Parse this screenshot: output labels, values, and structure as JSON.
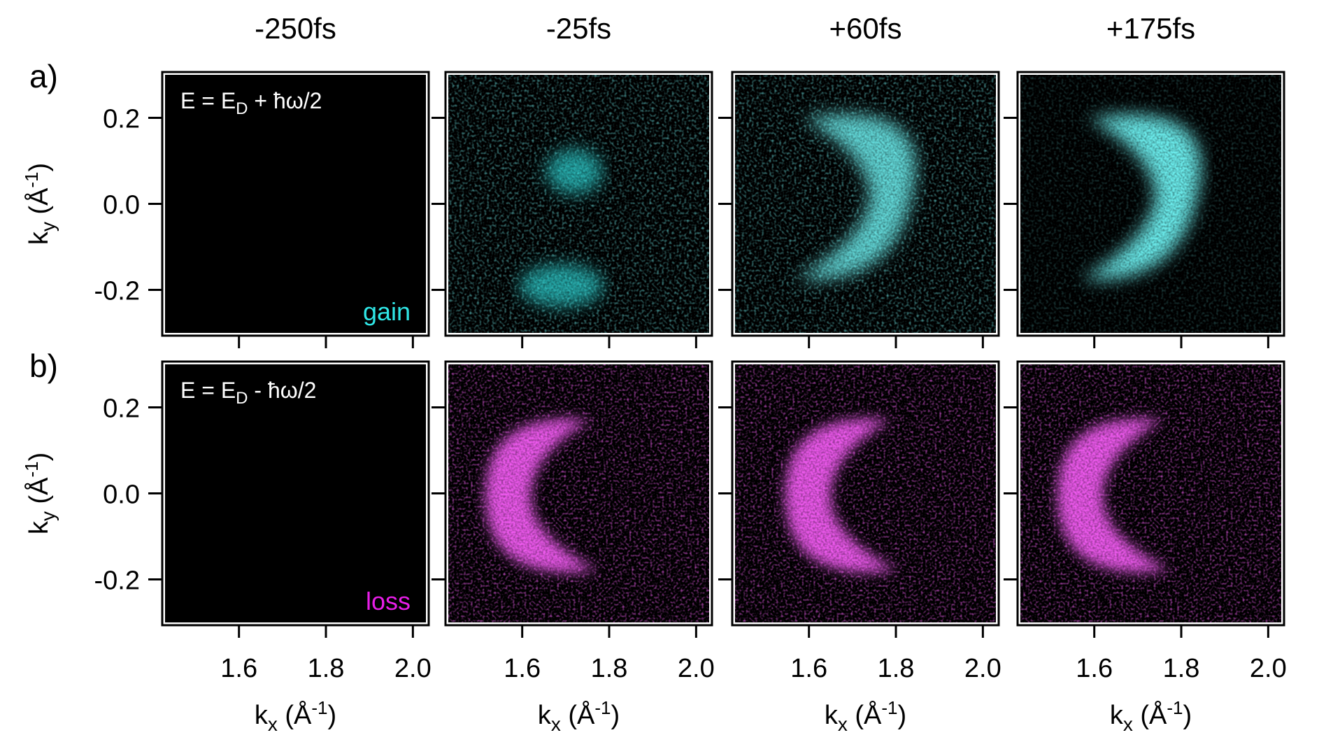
{
  "figure": {
    "columns": [
      "-250fs",
      "-25fs",
      "+60fs",
      "+175fs"
    ],
    "rows": [
      {
        "label": "a)",
        "energy_prefix": "E = E",
        "energy_sub": "D",
        "energy_suffix": " + ħω/2",
        "tag": "gain",
        "tag_color": "#2fe6e6"
      },
      {
        "label": "b)",
        "energy_prefix": "E = E",
        "energy_sub": "D",
        "energy_suffix": " - ħω/2",
        "tag": "loss",
        "tag_color": "#e81ee8"
      }
    ],
    "y_axis": {
      "base": "k",
      "sub": "y",
      "unit_open": " (Å",
      "unit_sup": "-1",
      "unit_close": ")"
    },
    "x_axis": {
      "base": "k",
      "sub": "x",
      "unit_open": " (Å",
      "unit_sup": "-1",
      "unit_close": ")"
    },
    "colors": {
      "cyan": "#2fe6e6",
      "magenta": "#e81ee8",
      "panel_bg": "#000000"
    }
  },
  "chart_data": {
    "type": "heatmap",
    "layout": "2 rows x 4 columns",
    "x": {
      "label": "kx (Å-1)",
      "range": [
        1.43,
        2.03
      ],
      "ticks": [
        1.6,
        1.8,
        2.0
      ],
      "tick_labels": [
        "1.6",
        "1.8",
        "2.0"
      ]
    },
    "y": {
      "label": "ky (Å-1)",
      "range": [
        -0.3,
        0.3
      ],
      "ticks": [
        0.2,
        0.0,
        -0.2
      ],
      "tick_labels": [
        "0.2",
        "0.0",
        "-0.2"
      ]
    },
    "panels": [
      {
        "row": "a)",
        "time": "-250fs",
        "tag": "gain",
        "feature": "none",
        "color": "#2fe6e6"
      },
      {
        "row": "a)",
        "time": "-25fs",
        "tag": "gain",
        "feature": "faint lobes",
        "color": "#2fe6e6"
      },
      {
        "row": "a)",
        "time": "+60fs",
        "tag": "gain",
        "feature": "crescent",
        "color": "#2fe6e6"
      },
      {
        "row": "a)",
        "time": "+175fs",
        "tag": "gain",
        "feature": "crescent",
        "color": "#2fe6e6"
      },
      {
        "row": "b)",
        "time": "-250fs",
        "tag": "loss",
        "feature": "none",
        "color": "#e81ee8"
      },
      {
        "row": "b)",
        "time": "-25fs",
        "tag": "loss",
        "feature": "crescent",
        "color": "#e81ee8"
      },
      {
        "row": "b)",
        "time": "+60fs",
        "tag": "loss",
        "feature": "crescent",
        "color": "#e81ee8"
      },
      {
        "row": "b)",
        "time": "+175fs",
        "tag": "loss",
        "feature": "crescent",
        "color": "#e81ee8"
      }
    ]
  }
}
